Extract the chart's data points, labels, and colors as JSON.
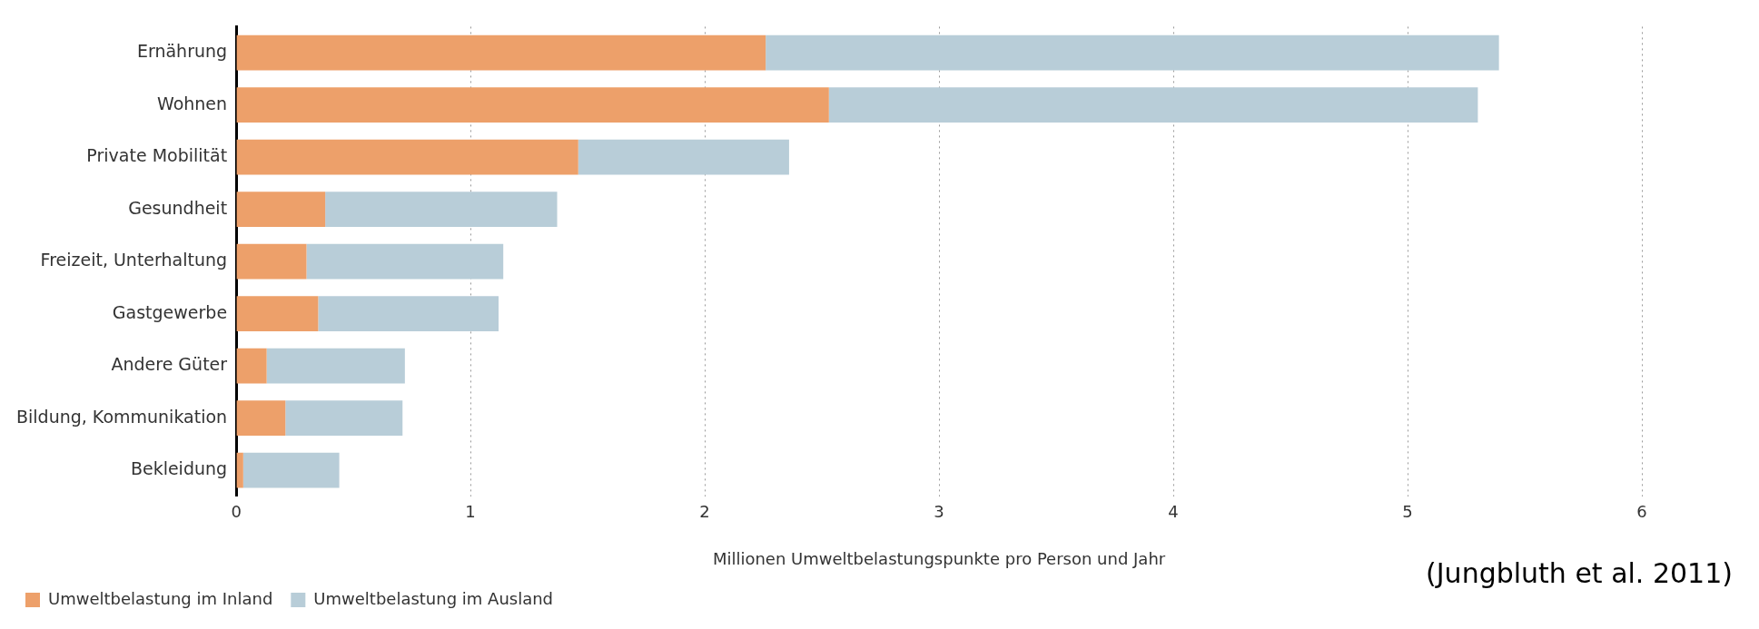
{
  "chart_data": {
    "type": "bar",
    "orientation": "horizontal",
    "stacked": true,
    "categories": [
      "Ernährung",
      "Wohnen",
      "Private Mobilität",
      "Gesundheit",
      "Freizeit, Unterhaltung",
      "Gastgewerbe",
      "Andere Güter",
      "Bildung, Kommunikation",
      "Bekleidung"
    ],
    "series": [
      {
        "name": "Umweltbelastung im Inland",
        "color": "#eda06a",
        "values": [
          2.26,
          2.53,
          1.46,
          0.38,
          0.3,
          0.35,
          0.13,
          0.21,
          0.03
        ]
      },
      {
        "name": "Umweltbelastung im Ausland",
        "color": "#b8cdd8",
        "values": [
          3.13,
          2.77,
          0.9,
          0.99,
          0.84,
          0.77,
          0.59,
          0.5,
          0.41
        ]
      }
    ],
    "xlabel": "Millionen Umweltbelastungspunkte pro Person und Jahr",
    "xlim": [
      0,
      6
    ],
    "xticks": [
      0,
      1,
      2,
      3,
      4,
      5,
      6
    ],
    "grid": "x",
    "legend": "bottom left",
    "annotations": [
      "(Jungbluth et al. 2011)"
    ]
  }
}
